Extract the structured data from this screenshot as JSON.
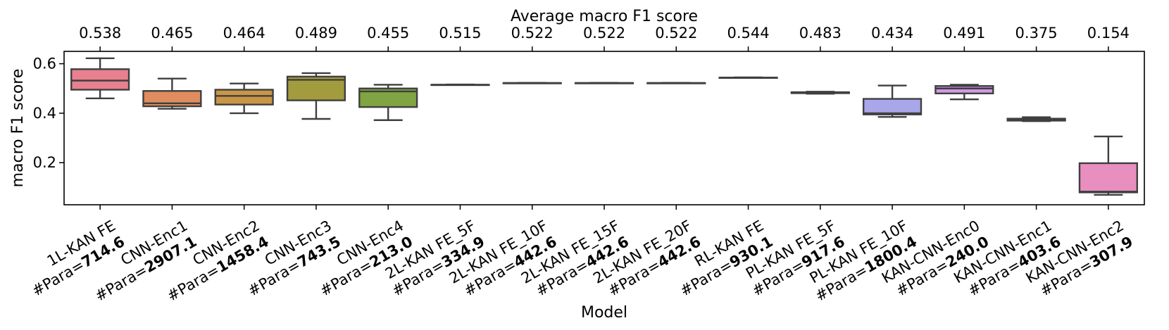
{
  "chart_data": {
    "type": "box",
    "xlabel": "Model",
    "ylabel": "macro F1 score",
    "top_axis_label": "Average macro F1 score",
    "ylim": [
      0.03,
      0.65
    ],
    "yticks": [
      0.2,
      0.4,
      0.6
    ],
    "ytick_labels": [
      "0.2",
      "0.4",
      "0.6"
    ],
    "grid": false,
    "para_prefix": "#Para=",
    "categories": [
      {
        "name": "1L-KAN FE",
        "para": "714.6",
        "avg": "0.538",
        "color": "#e8808f",
        "stats": {
          "whislo": 0.46,
          "q1": 0.495,
          "med": 0.532,
          "q3": 0.578,
          "whishi": 0.622
        }
      },
      {
        "name": "CNN-Enc1",
        "para": "2907.1",
        "avg": "0.465",
        "color": "#df8d5f",
        "stats": {
          "whislo": 0.418,
          "q1": 0.428,
          "med": 0.44,
          "q3": 0.49,
          "whishi": 0.54
        }
      },
      {
        "name": "CNN-Enc2",
        "para": "1458.4",
        "avg": "0.464",
        "color": "#c89645",
        "stats": {
          "whislo": 0.4,
          "q1": 0.435,
          "med": 0.47,
          "q3": 0.495,
          "whishi": 0.52
        }
      },
      {
        "name": "CNN-Enc3",
        "para": "743.5",
        "avg": "0.489",
        "color": "#a29c3e",
        "stats": {
          "whislo": 0.377,
          "q1": 0.452,
          "med": 0.535,
          "q3": 0.548,
          "whishi": 0.562
        }
      },
      {
        "name": "CNN-Enc4",
        "para": "213.0",
        "avg": "0.455",
        "color": "#80a441",
        "stats": {
          "whislo": 0.372,
          "q1": 0.425,
          "med": 0.488,
          "q3": 0.5,
          "whishi": 0.515
        }
      },
      {
        "name": "2L-KAN FE_5F",
        "para": "334.9",
        "avg": "0.515",
        "color": "#4fae6e",
        "stats": {
          "whislo": 0.514,
          "q1": 0.515,
          "med": 0.515,
          "q3": 0.515,
          "whishi": 0.516
        }
      },
      {
        "name": "2L-KAN FE_10F",
        "para": "442.6",
        "avg": "0.522",
        "color": "#47ab9c",
        "stats": {
          "whislo": 0.521,
          "q1": 0.522,
          "med": 0.522,
          "q3": 0.522,
          "whishi": 0.523
        }
      },
      {
        "name": "2L-KAN FE_15F",
        "para": "442.6",
        "avg": "0.522",
        "color": "#4aa9b5",
        "stats": {
          "whislo": 0.521,
          "q1": 0.522,
          "med": 0.522,
          "q3": 0.522,
          "whishi": 0.523
        }
      },
      {
        "name": "2L-KAN FE_20F",
        "para": "442.6",
        "avg": "0.522",
        "color": "#4fa8c8",
        "stats": {
          "whislo": 0.521,
          "q1": 0.522,
          "med": 0.522,
          "q3": 0.522,
          "whishi": 0.523
        }
      },
      {
        "name": "RL-KAN FE",
        "para": "930.1",
        "avg": "0.544",
        "color": "#6fa6d8",
        "stats": {
          "whislo": 0.543,
          "q1": 0.544,
          "med": 0.544,
          "q3": 0.544,
          "whishi": 0.545
        }
      },
      {
        "name": "PL-KAN FE_5F",
        "para": "917.6",
        "avg": "0.483",
        "color": "#8fa8e2",
        "stats": {
          "whislo": 0.479,
          "q1": 0.481,
          "med": 0.483,
          "q3": 0.485,
          "whishi": 0.487
        }
      },
      {
        "name": "PL-KAN FE_10F",
        "para": "1800.4",
        "avg": "0.434",
        "color": "#a9a6ea",
        "stats": {
          "whislo": 0.385,
          "q1": 0.395,
          "med": 0.4,
          "q3": 0.458,
          "whishi": 0.512
        }
      },
      {
        "name": "KAN-CNN-Enc0",
        "para": "240.0",
        "avg": "0.491",
        "color": "#d09be6",
        "stats": {
          "whislo": 0.456,
          "q1": 0.48,
          "med": 0.5,
          "q3": 0.51,
          "whishi": 0.515
        }
      },
      {
        "name": "KAN-CNN-Enc1",
        "para": "403.6",
        "avg": "0.375",
        "color": "#e08fd4",
        "stats": {
          "whislo": 0.368,
          "q1": 0.37,
          "med": 0.375,
          "q3": 0.378,
          "whishi": 0.384
        }
      },
      {
        "name": "KAN-CNN-Enc2",
        "para": "307.9",
        "avg": "0.154",
        "color": "#e88fbf",
        "stats": {
          "whislo": 0.07,
          "q1": 0.08,
          "med": 0.083,
          "q3": 0.198,
          "whishi": 0.306
        }
      }
    ]
  }
}
